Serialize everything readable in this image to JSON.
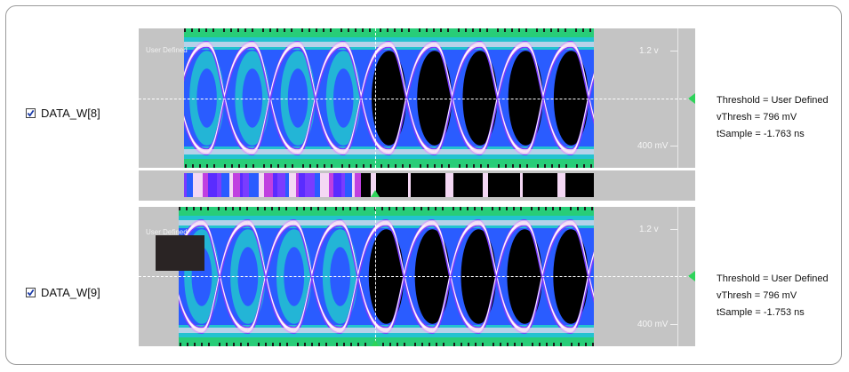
{
  "channels": [
    {
      "name": "DATA_W[8]",
      "checked": true,
      "overlay_label": "User Defined",
      "scale_top": "1.2 v",
      "scale_bottom": "400 mV",
      "info": {
        "threshold": "Threshold = User Defined",
        "vthresh": "vThresh = 796 mV",
        "tsample": "tSample = -1.763 ns"
      }
    },
    {
      "name": "DATA_W[9]",
      "checked": true,
      "overlay_label": "User Defined",
      "scale_top": "1.2 v",
      "scale_bottom": "400 mV",
      "info": {
        "threshold": "Threshold = User Defined",
        "vthresh": "vThresh = 796 mV",
        "tsample": "tSample = -1.753 ns"
      }
    }
  ],
  "colors": {
    "panel_bg": "#c4c4c4",
    "eye_fill": "#000000",
    "trace_white": "#f4d8f4",
    "trace_purple": "#7a3cff",
    "trace_blue": "#2a5cff",
    "trace_cyan": "#22d3c8",
    "trace_green": "#28e060",
    "marker_green": "#2ed35a"
  },
  "icons": {
    "checkbox": "checkbox-checked-icon",
    "marker": "threshold-marker-icon"
  }
}
